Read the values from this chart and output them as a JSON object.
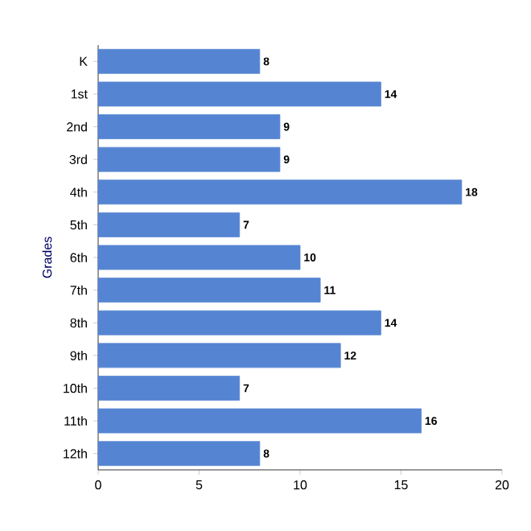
{
  "chart_data": {
    "type": "bar",
    "orientation": "horizontal",
    "ylabel": "Grades",
    "categories": [
      "K",
      "1st",
      "2nd",
      "3rd",
      "4th",
      "5th",
      "6th",
      "7th",
      "8th",
      "9th",
      "10th",
      "11th",
      "12th"
    ],
    "values": [
      8,
      14,
      9,
      9,
      18,
      7,
      10,
      11,
      14,
      12,
      7,
      16,
      8
    ],
    "color": "#5585d2",
    "xlim": [
      0,
      20
    ],
    "xticks": [
      0,
      5,
      10,
      15,
      20
    ],
    "data_labels": true
  }
}
